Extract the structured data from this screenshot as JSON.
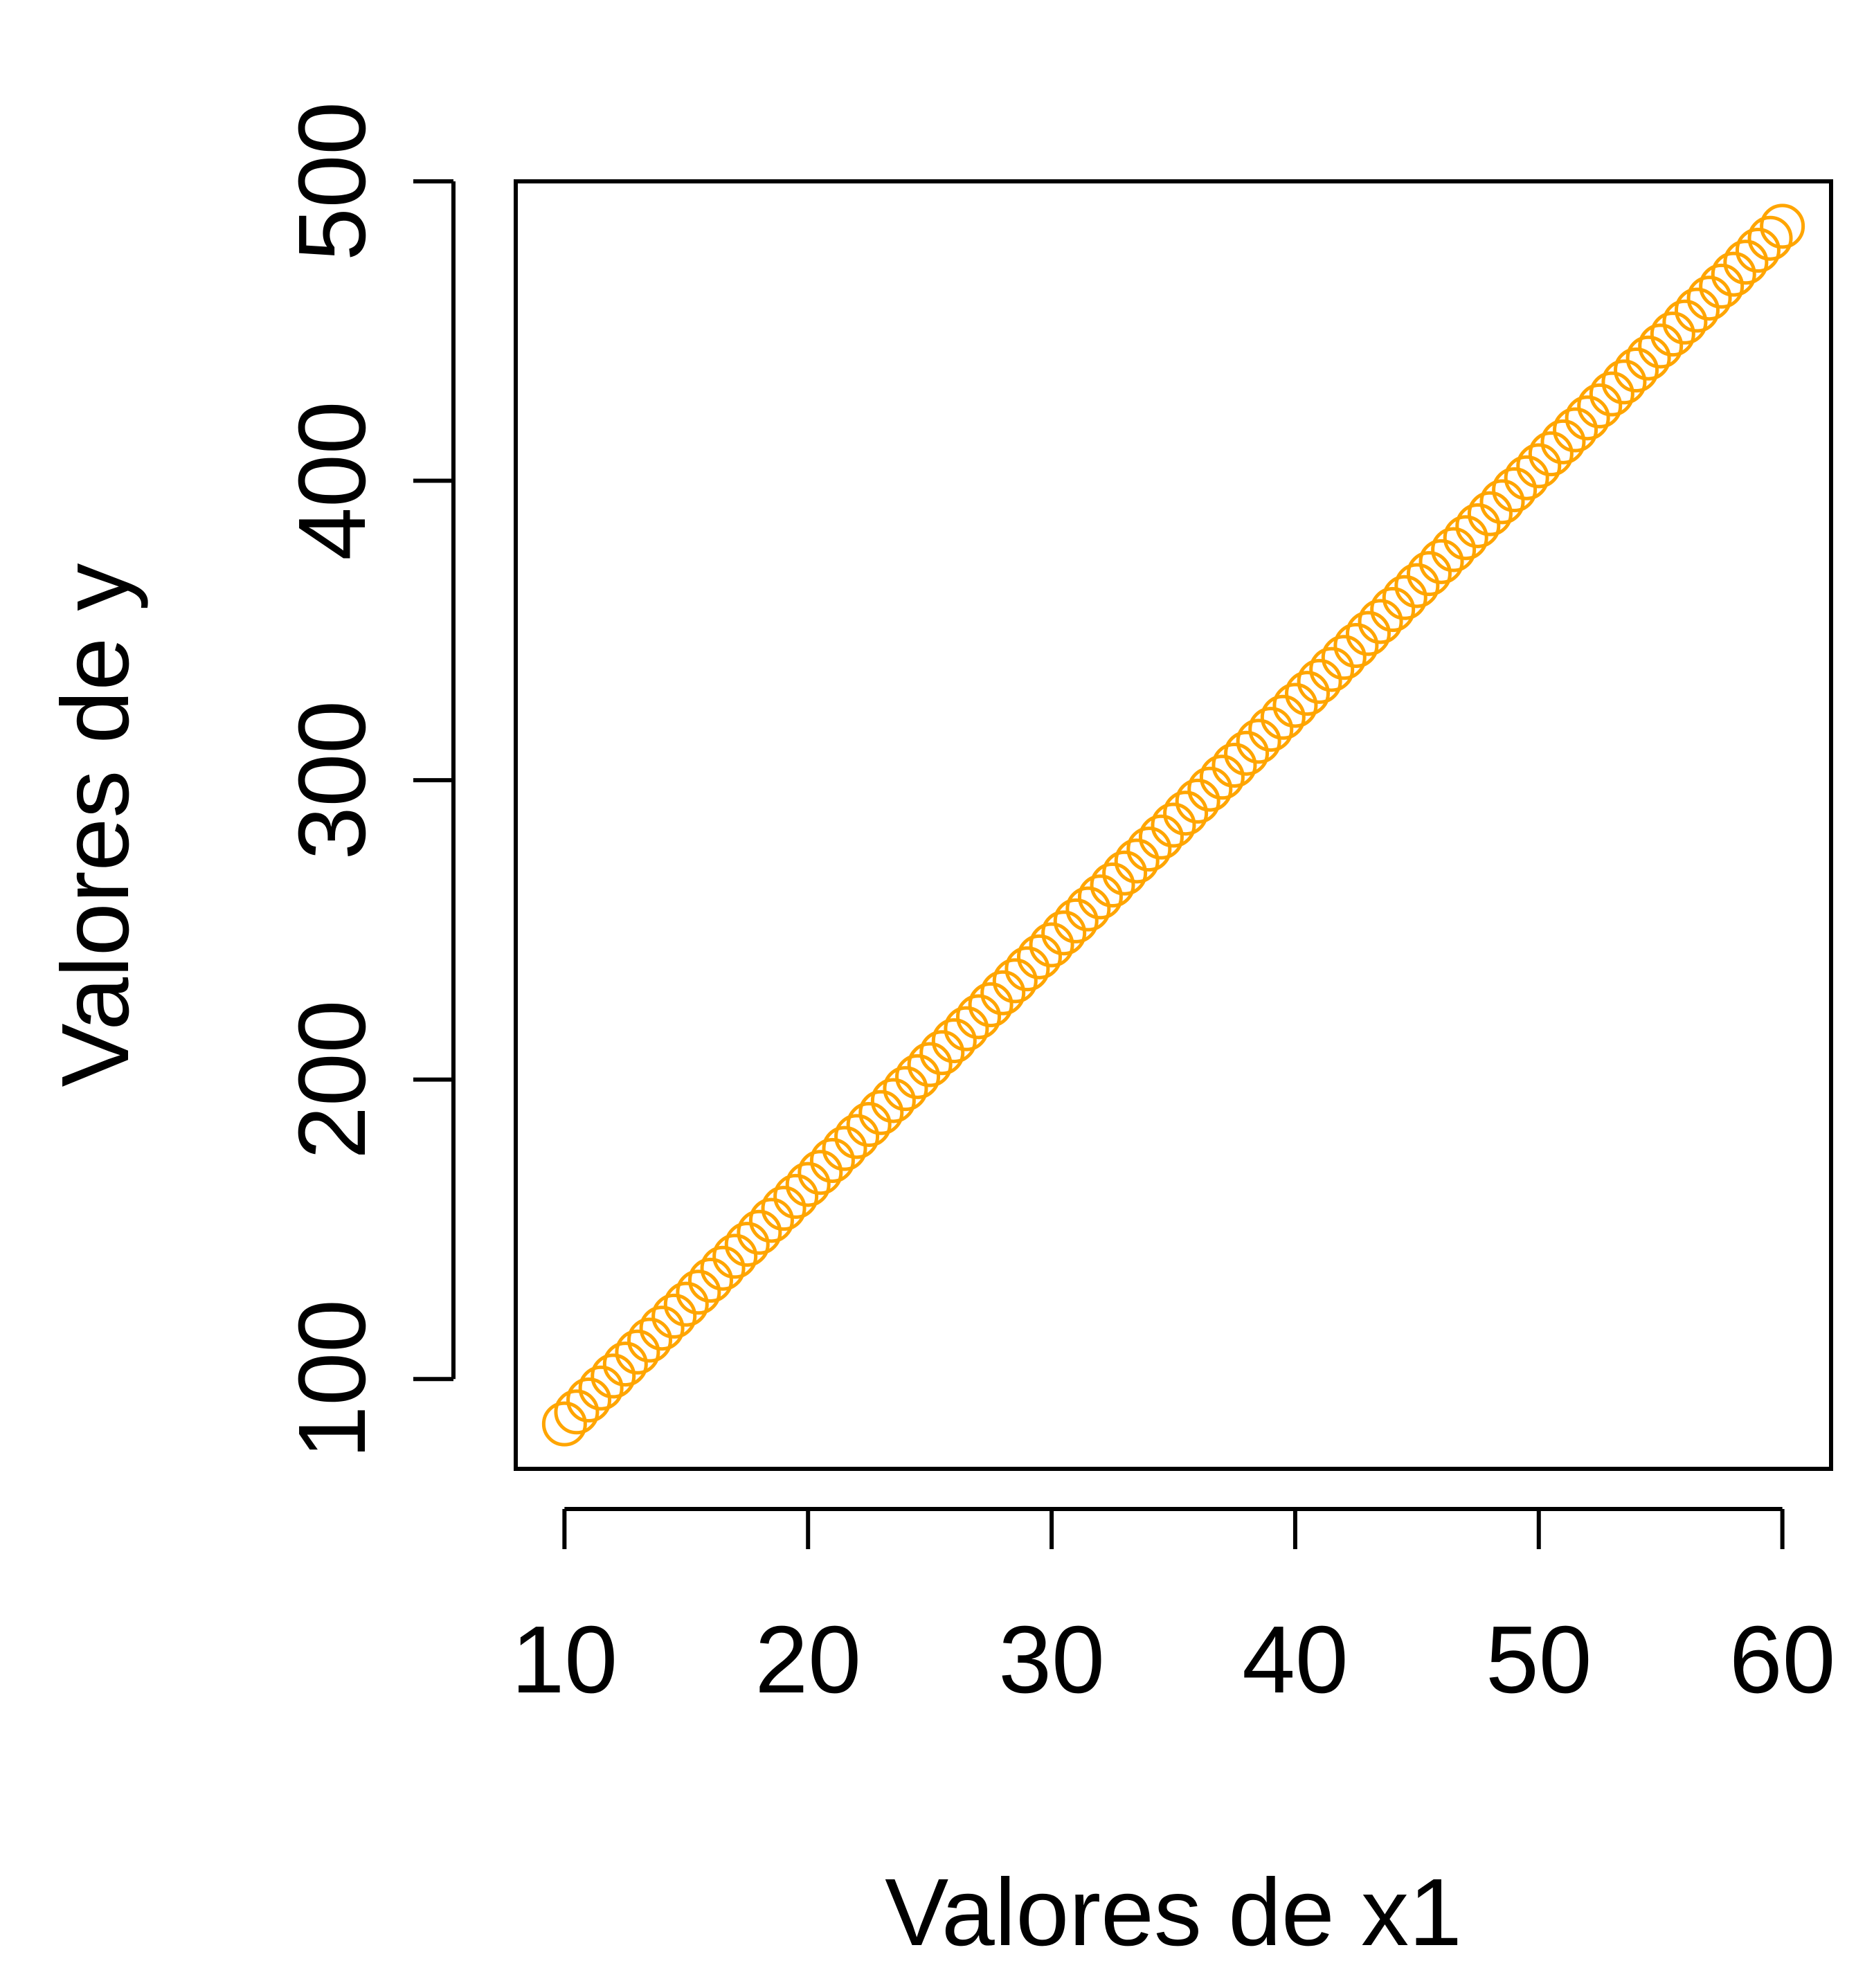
{
  "chart_data": {
    "type": "scatter",
    "title": "",
    "xlabel": "Valores de x1",
    "ylabel": "Valores de y",
    "xlim": [
      8,
      62
    ],
    "ylim": [
      70,
      500
    ],
    "x_ticks": [
      10,
      20,
      30,
      40,
      50,
      60
    ],
    "y_ticks": [
      100,
      200,
      300,
      400,
      500
    ],
    "x_tick_labels": [
      "10",
      "20",
      "30",
      "40",
      "50",
      "60"
    ],
    "y_tick_labels": [
      "100",
      "200",
      "300",
      "400",
      "500"
    ],
    "grid": false,
    "marker": "open-circle",
    "series": [
      {
        "color": "#FFA500",
        "points": {
          "x_start": 10,
          "x_end": 60,
          "x_step": 0.5,
          "slope": 8,
          "intercept": 5
        }
      }
    ]
  }
}
